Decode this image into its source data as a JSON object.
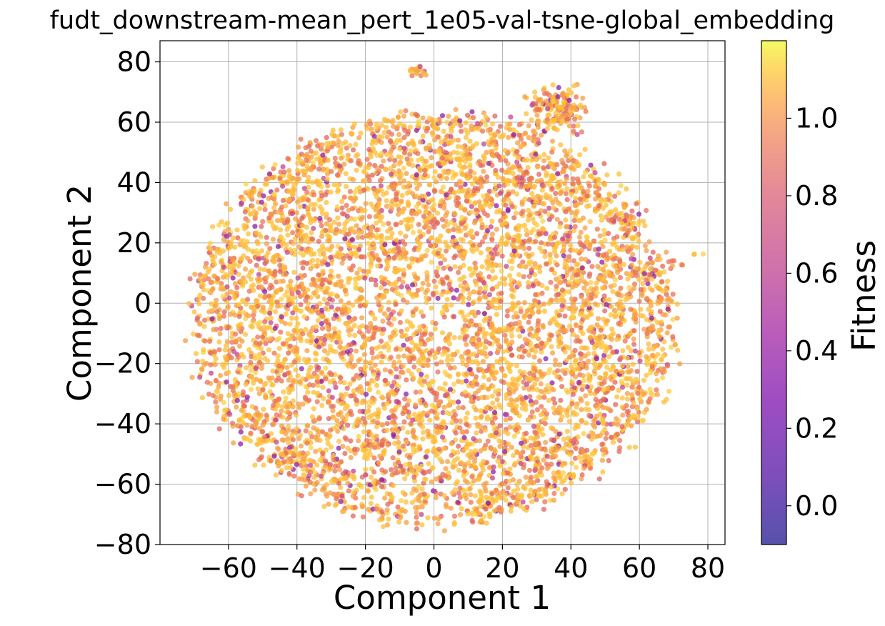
{
  "chart_data": {
    "type": "scatter",
    "title": "fudt_downstream-mean_pert_1e05-val-tsne-global_embedding",
    "xlabel": "Component 1",
    "ylabel": "Component 2",
    "xlim": [
      -80,
      85
    ],
    "ylim": [
      -80,
      87
    ],
    "x_ticks": [
      -60,
      -40,
      -20,
      0,
      20,
      40,
      60,
      80
    ],
    "x_tick_labels": [
      "−60",
      "−40",
      "−20",
      "0",
      "20",
      "40",
      "60",
      "80"
    ],
    "y_ticks": [
      -80,
      -60,
      -40,
      -20,
      0,
      20,
      40,
      60,
      80
    ],
    "y_tick_labels": [
      "−80",
      "−60",
      "−40",
      "−20",
      "0",
      "20",
      "40",
      "60",
      "80"
    ],
    "grid": true,
    "colorbar": {
      "label": "Fitness",
      "colormap": "plasma",
      "range": [
        -0.1,
        1.2
      ],
      "ticks": [
        0.0,
        0.2,
        0.4,
        0.6,
        0.8,
        1.0
      ],
      "tick_labels": [
        "0.0",
        "0.2",
        "0.4",
        "0.6",
        "0.8",
        "1.0"
      ]
    },
    "point_alpha": 0.75,
    "approx_point_count": 7000,
    "clusters": [
      {
        "x": 0,
        "y": -5,
        "sx": 38,
        "sy": 36,
        "n": 6200
      },
      {
        "x": 36,
        "y": 64,
        "sx": 4,
        "sy": 3.5,
        "n": 160
      },
      {
        "x": -5,
        "y": 77,
        "sx": 1.5,
        "sy": 1,
        "n": 18
      },
      {
        "x": -43,
        "y": -50,
        "sx": 2,
        "sy": 1,
        "n": 14
      },
      {
        "x": 45,
        "y": -53,
        "sx": 1.2,
        "sy": 1.2,
        "n": 10
      },
      {
        "x": 56,
        "y": 27,
        "sx": 1.5,
        "sy": 1.5,
        "n": 14
      },
      {
        "x": 70,
        "y": 12,
        "sx": 1.5,
        "sy": 1.5,
        "n": 8
      },
      {
        "x": 77,
        "y": 17,
        "sx": 0.6,
        "sy": 0.6,
        "n": 3
      }
    ]
  }
}
